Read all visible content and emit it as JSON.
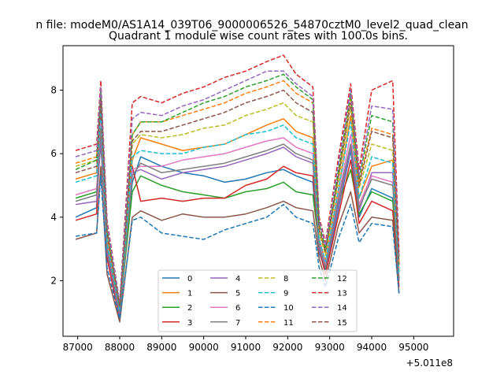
{
  "chart_data": {
    "type": "line",
    "suptitle": "n file: modeM0/AS1A14_039T06_9000006526_54870cztM0_level2_quad_clean",
    "title": "Quadrant 1 module wise count rates with 100.0s bins.",
    "xlabel": "",
    "ylabel": "",
    "x_offset_label": "+5.011e8",
    "xlim": [
      86650,
      95950
    ],
    "ylim": [
      0.25,
      9.4
    ],
    "xticks": [
      87000,
      88000,
      89000,
      90000,
      91000,
      92000,
      93000,
      94000,
      95000
    ],
    "xtick_labels": [
      "87000",
      "88000",
      "89000",
      "90000",
      "91000",
      "92000",
      "93000",
      "94000",
      "95000"
    ],
    "yticks": [
      2,
      4,
      6,
      8
    ],
    "ytick_labels": [
      "2",
      "4",
      "6",
      "8"
    ],
    "x": [
      86950,
      87450,
      87550,
      87700,
      88000,
      88300,
      88500,
      89000,
      89500,
      90000,
      90500,
      91000,
      91500,
      91900,
      92200,
      92600,
      92750,
      92900,
      93200,
      93500,
      93700,
      94000,
      94500,
      94650
    ],
    "grid": false,
    "legend": {
      "placement": "lower-center",
      "columns": 4
    },
    "series": [
      {
        "name": "0",
        "style": "solid",
        "color": "#1f77b4",
        "values": [
          4.0,
          4.3,
          6.6,
          2.8,
          0.9,
          5.1,
          5.9,
          5.6,
          5.4,
          5.3,
          5.1,
          5.2,
          5.4,
          5.5,
          5.3,
          5.1,
          2.9,
          2.3,
          4.2,
          6.1,
          4.0,
          4.9,
          4.6,
          2.0
        ]
      },
      {
        "name": "1",
        "style": "solid",
        "color": "#ff7f0e",
        "values": [
          5.2,
          5.4,
          7.6,
          3.3,
          1.1,
          5.8,
          6.5,
          6.3,
          6.1,
          6.2,
          6.3,
          6.6,
          6.9,
          7.1,
          6.7,
          6.5,
          3.3,
          2.6,
          4.8,
          7.2,
          4.6,
          5.6,
          5.8,
          2.3
        ]
      },
      {
        "name": "2",
        "style": "solid",
        "color": "#2ca02c",
        "values": [
          4.6,
          4.8,
          6.3,
          3.0,
          1.0,
          4.8,
          5.3,
          5.0,
          4.8,
          4.7,
          4.6,
          4.8,
          4.9,
          5.1,
          4.8,
          4.7,
          3.1,
          2.4,
          4.4,
          5.5,
          4.1,
          4.8,
          4.5,
          2.0
        ]
      },
      {
        "name": "3",
        "style": "solid",
        "color": "#d62728",
        "values": [
          3.9,
          4.1,
          7.2,
          2.7,
          0.8,
          5.6,
          4.5,
          4.6,
          4.5,
          4.6,
          4.6,
          5.0,
          5.2,
          5.6,
          5.4,
          5.3,
          3.0,
          2.2,
          4.0,
          5.8,
          3.8,
          4.5,
          4.2,
          1.8
        ]
      },
      {
        "name": "4",
        "style": "solid",
        "color": "#9467bd",
        "values": [
          4.4,
          4.5,
          6.4,
          2.9,
          0.9,
          5.4,
          5.5,
          5.2,
          5.4,
          5.5,
          5.6,
          5.8,
          6.0,
          6.2,
          5.9,
          5.7,
          3.0,
          2.4,
          4.3,
          6.2,
          4.2,
          5.4,
          5.4,
          2.0
        ]
      },
      {
        "name": "5",
        "style": "solid",
        "color": "#8c564b",
        "values": [
          3.3,
          3.5,
          5.6,
          2.2,
          0.7,
          4.0,
          4.2,
          3.9,
          4.1,
          4.0,
          4.0,
          4.1,
          4.3,
          4.5,
          4.3,
          4.2,
          2.7,
          2.0,
          3.7,
          4.8,
          3.5,
          4.0,
          3.9,
          1.6
        ]
      },
      {
        "name": "6",
        "style": "solid",
        "color": "#e377c2",
        "values": [
          4.7,
          4.9,
          7.0,
          3.1,
          1.0,
          5.5,
          5.6,
          5.6,
          5.8,
          5.9,
          6.0,
          6.2,
          6.4,
          6.5,
          6.2,
          6.0,
          3.2,
          2.5,
          4.6,
          6.6,
          4.4,
          5.3,
          5.1,
          2.1
        ]
      },
      {
        "name": "7",
        "style": "solid",
        "color": "#7f7f7f",
        "values": [
          4.5,
          4.7,
          6.8,
          3.0,
          1.0,
          5.3,
          5.7,
          5.4,
          5.5,
          5.6,
          5.7,
          5.9,
          6.1,
          6.3,
          6.0,
          5.8,
          3.1,
          2.4,
          4.5,
          6.3,
          4.3,
          5.2,
          5.0,
          2.0
        ]
      },
      {
        "name": "8",
        "style": "dashed",
        "color": "#bcbd22",
        "values": [
          5.6,
          5.8,
          7.8,
          3.5,
          1.2,
          6.3,
          6.6,
          6.5,
          6.6,
          6.8,
          6.9,
          7.2,
          7.4,
          7.6,
          7.2,
          7.0,
          3.5,
          2.8,
          5.1,
          7.5,
          4.9,
          6.3,
          6.1,
          2.5
        ]
      },
      {
        "name": "9",
        "style": "dashed",
        "color": "#17becf",
        "values": [
          5.1,
          5.3,
          7.4,
          3.2,
          1.1,
          5.9,
          6.1,
          6.0,
          6.0,
          6.2,
          6.3,
          6.6,
          6.7,
          6.9,
          6.5,
          6.3,
          3.3,
          2.6,
          4.8,
          7.0,
          4.6,
          5.9,
          5.7,
          2.2
        ]
      },
      {
        "name": "10",
        "style": "dashed",
        "color": "#1f77b4",
        "values": [
          3.4,
          3.5,
          5.3,
          2.4,
          0.8,
          3.9,
          4.0,
          3.5,
          3.4,
          3.3,
          3.6,
          3.8,
          4.0,
          4.4,
          4.0,
          3.8,
          2.4,
          1.8,
          3.3,
          4.4,
          3.2,
          3.8,
          3.7,
          1.6
        ]
      },
      {
        "name": "11",
        "style": "dashed",
        "color": "#ff7f0e",
        "values": [
          5.7,
          5.9,
          8.0,
          3.6,
          1.2,
          6.6,
          7.0,
          7.0,
          7.2,
          7.4,
          7.6,
          7.9,
          8.1,
          8.3,
          7.9,
          7.6,
          3.7,
          2.9,
          5.3,
          7.8,
          5.1,
          6.8,
          6.6,
          2.6
        ]
      },
      {
        "name": "12",
        "style": "dashed",
        "color": "#2ca02c",
        "values": [
          5.5,
          5.8,
          8.0,
          3.6,
          1.2,
          6.6,
          7.0,
          7.0,
          7.3,
          7.6,
          7.8,
          8.1,
          8.3,
          8.5,
          8.1,
          7.7,
          3.8,
          3.0,
          5.4,
          7.9,
          5.2,
          7.2,
          7.0,
          2.7
        ]
      },
      {
        "name": "13",
        "style": "dashed",
        "color": "#d62728",
        "values": [
          6.1,
          6.3,
          8.3,
          3.9,
          1.3,
          7.6,
          7.8,
          7.6,
          7.9,
          8.1,
          8.4,
          8.6,
          8.9,
          9.1,
          8.5,
          8.1,
          4.0,
          3.2,
          5.8,
          8.2,
          5.5,
          8.0,
          8.3,
          2.9
        ]
      },
      {
        "name": "14",
        "style": "dashed",
        "color": "#9467bd",
        "values": [
          5.9,
          6.1,
          8.1,
          3.8,
          1.3,
          7.1,
          7.3,
          7.2,
          7.5,
          7.7,
          8.0,
          8.3,
          8.6,
          8.6,
          8.2,
          7.8,
          3.9,
          3.1,
          5.6,
          8.0,
          5.3,
          7.5,
          7.4,
          2.8
        ]
      },
      {
        "name": "15",
        "style": "dashed",
        "color": "#8c564b",
        "values": [
          5.4,
          5.6,
          7.7,
          3.5,
          1.2,
          6.4,
          6.7,
          6.7,
          6.9,
          7.1,
          7.3,
          7.6,
          7.8,
          8.0,
          7.6,
          7.3,
          3.6,
          2.9,
          5.2,
          7.6,
          5.0,
          6.7,
          6.5,
          2.5
        ]
      }
    ]
  }
}
